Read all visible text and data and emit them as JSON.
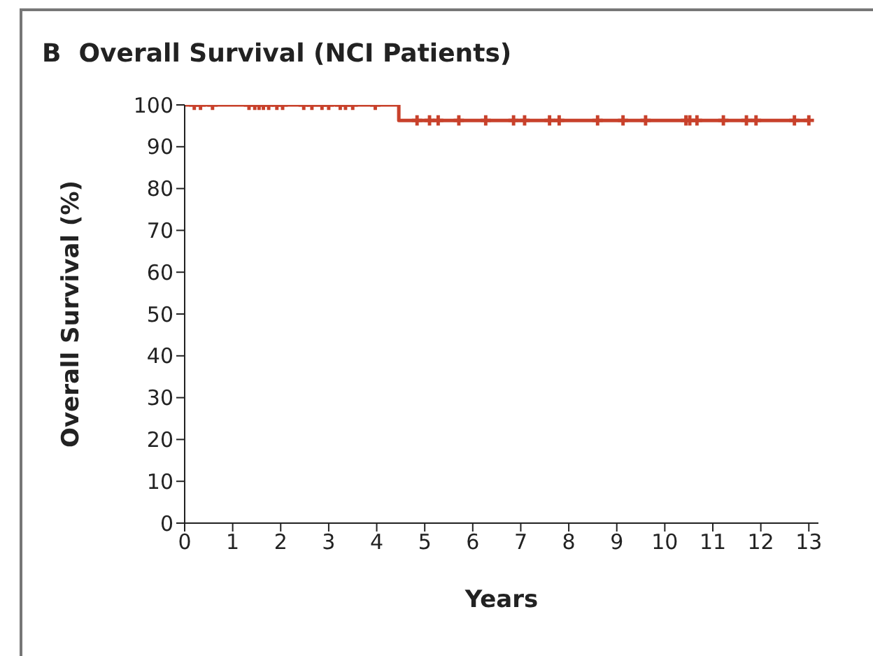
{
  "chart_data": {
    "type": "step",
    "title": "B  Overall Survival (NCI Patients)",
    "xlabel": "Years",
    "ylabel": "Overall Survival (%)",
    "xlim": [
      0,
      13.2
    ],
    "ylim": [
      0,
      100
    ],
    "xticks": [
      0,
      1,
      2,
      3,
      4,
      5,
      6,
      7,
      8,
      9,
      10,
      11,
      12,
      13
    ],
    "yticks": [
      0,
      10,
      20,
      30,
      40,
      50,
      60,
      70,
      80,
      90,
      100
    ],
    "series": [
      {
        "color": "#c8412b",
        "x": [
          0,
          4.46,
          13
        ],
        "values": [
          100,
          96.3,
          96.3
        ]
      },
      {
        "type": "scatter",
        "marker": "cross",
        "color": "#c8412b",
        "x": [
          0.2,
          0.33,
          0.58,
          1.34,
          1.46,
          1.55,
          1.64,
          1.75,
          1.92,
          2.04,
          2.48,
          2.65,
          2.86,
          3.0,
          3.24,
          3.35,
          3.5,
          3.97,
          4.84,
          5.1,
          5.28,
          5.71,
          6.27,
          6.85,
          7.08,
          7.6,
          7.8,
          8.6,
          9.13,
          9.6,
          10.44,
          10.52,
          10.67,
          11.22,
          11.7,
          11.9,
          12.7,
          13.0
        ],
        "values": [
          100,
          100,
          100,
          100,
          100,
          100,
          100,
          100,
          100,
          100,
          100,
          100,
          100,
          100,
          100,
          100,
          100,
          100,
          96.3,
          96.3,
          96.3,
          96.3,
          96.3,
          96.3,
          96.3,
          96.3,
          96.3,
          96.3,
          96.3,
          96.3,
          96.3,
          96.3,
          96.3,
          96.3,
          96.3,
          96.3,
          96.3,
          96.3
        ]
      }
    ]
  }
}
